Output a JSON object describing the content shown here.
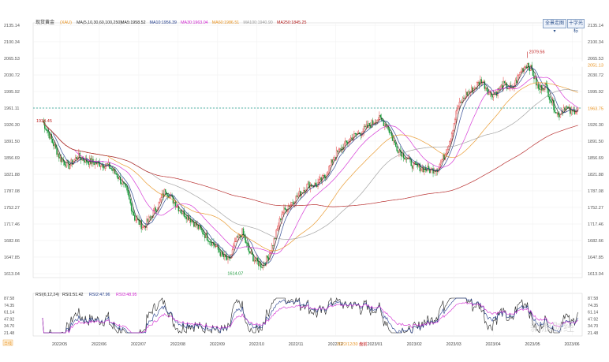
{
  "toolbar": {
    "btn_left": "全景走图 ▾",
    "btn_right": "十字光标"
  },
  "chart_data": {
    "type": "candlestick",
    "title": "现货黄金",
    "title_code": "(XAU)",
    "ma_legend_prefix": "MA(5,10,30,60,100,250)",
    "ma_series": [
      {
        "name": "MA5",
        "label": "MA5:1958.52",
        "color": "#222222"
      },
      {
        "name": "MA10",
        "label": "MA10:1956.39",
        "color": "#1f3a8a"
      },
      {
        "name": "MA30",
        "label": "MA30:1963.04",
        "color": "#d126d1"
      },
      {
        "name": "MA60",
        "label": "MA60:1986.51",
        "color": "#e8921f"
      },
      {
        "name": "MA100",
        "label": "MA100:1940.90",
        "color": "#9a9a9a"
      },
      {
        "name": "MA250",
        "label": "MA250:1845.25",
        "color": "#b01818"
      }
    ],
    "y_ticks": [
      "2135.14",
      "2100.34",
      "2065.53",
      "2030.72",
      "1995.92",
      "1961.11",
      "1926.30",
      "1891.50",
      "1856.69",
      "1821.88",
      "1787.08",
      "1752.27",
      "1717.46",
      "1682.66",
      "1647.85",
      "1613.04"
    ],
    "ylim": [
      1613.04,
      2135.14
    ],
    "x_ticks": [
      "2022/05",
      "2022/06",
      "2022/07",
      "2022/08",
      "2022/09",
      "2022/10",
      "2022/11",
      "2022/12",
      "2023/01",
      "2023/02",
      "2023/03",
      "2023/04",
      "2023/05",
      "2023/06"
    ],
    "annotations": {
      "high_label": "2079.56",
      "high_value": 2079.56,
      "low_label": "1614.07",
      "low_value": 1614.07,
      "start_label": "1934.45",
      "start_value": 1934.45,
      "current_label": "1963.75",
      "current_value": 1963.75,
      "level_label": "2051.13",
      "level_value": 2051.13,
      "reference_value": 1961.11
    },
    "rsi": {
      "legend_prefix": "RSI(6,12,24)",
      "series": [
        {
          "name": "RSI1",
          "label": "RSI1:51.42",
          "color": "#222222"
        },
        {
          "name": "RSI2",
          "label": "RSI2:47.96",
          "color": "#1f3a8a"
        },
        {
          "name": "RSI3",
          "label": "RSI3:48.95",
          "color": "#d126d1"
        }
      ],
      "y_ticks": [
        "87.58",
        "74.35",
        "61.14",
        "47.92",
        "34.70",
        "21.48"
      ],
      "ylim": [
        21.48,
        87.58
      ],
      "bottom_tag": "日线",
      "mid_label": "2022/12/30",
      "mid_label_tag": "盘前"
    },
    "watermark": "新浪财经"
  }
}
